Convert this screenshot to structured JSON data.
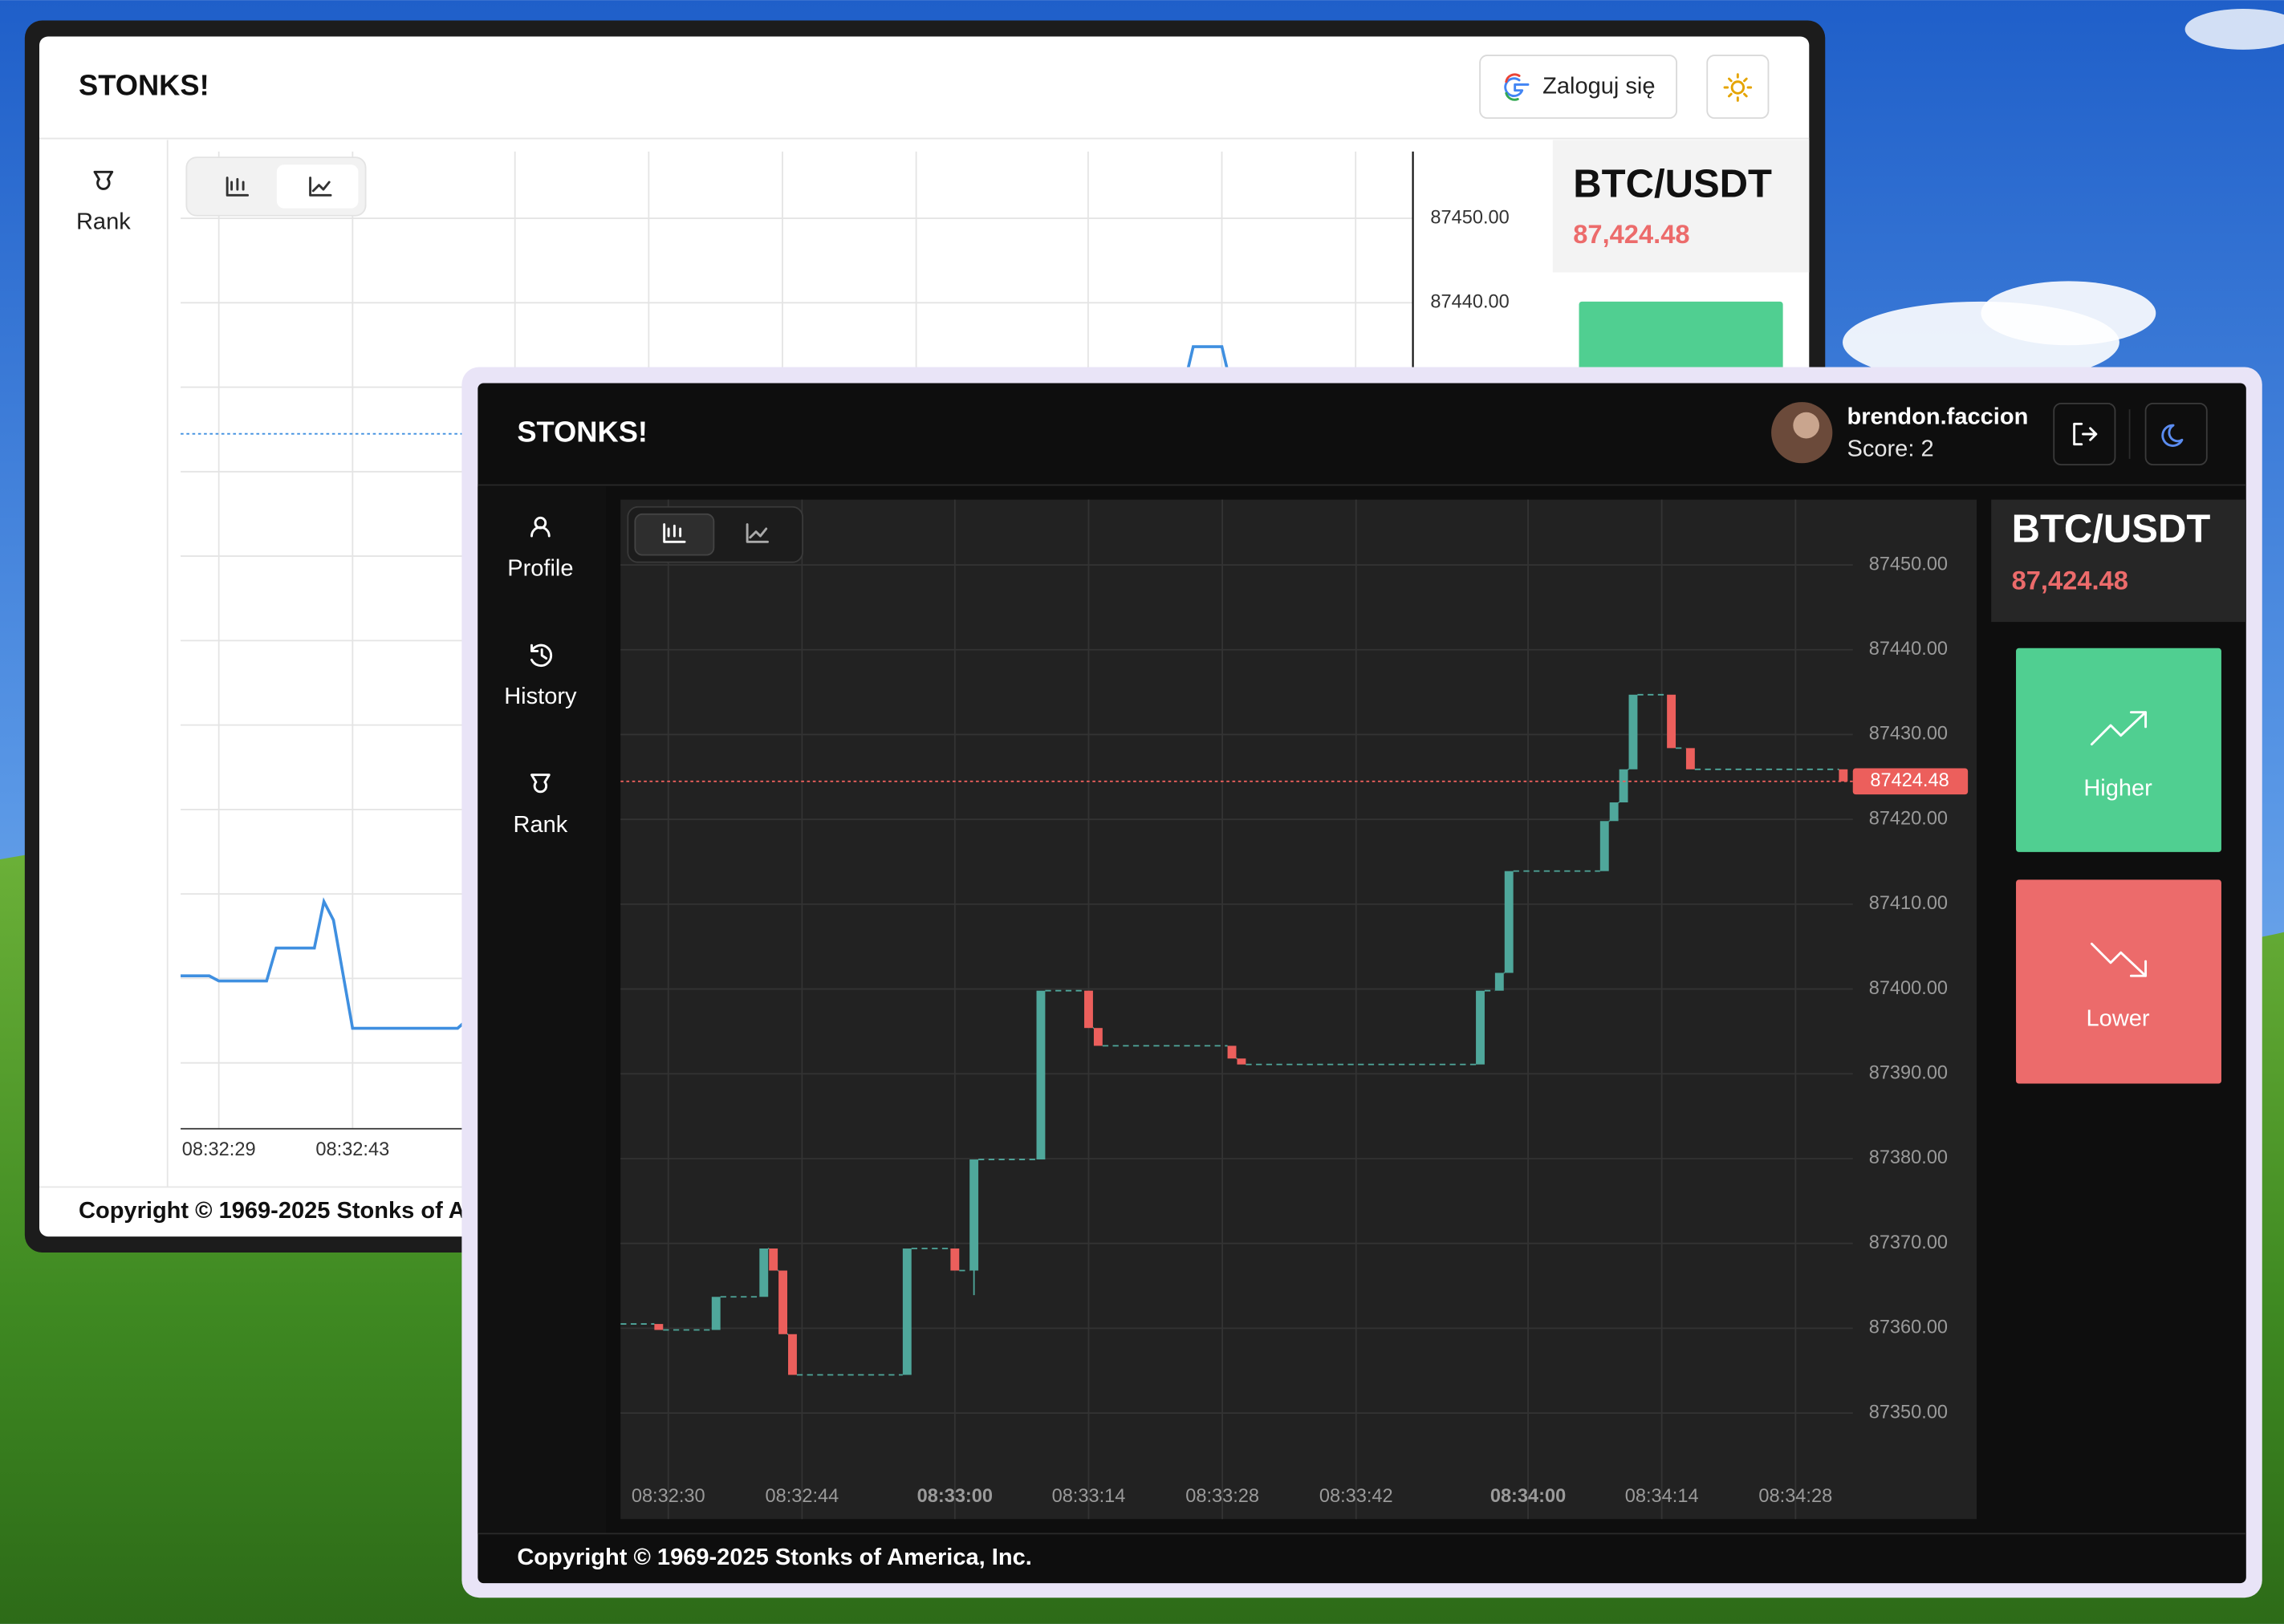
{
  "back_window": {
    "title": "STONKS!",
    "login_button": "Zaloguj się",
    "sidebar": [
      "Rank"
    ],
    "pair": "BTC/USDT",
    "price": "87,424.48",
    "footer": "Copyright © 1969-2025 Stonks of America, Inc.",
    "chart_data": {
      "type": "line",
      "x": [
        "08:32:25",
        "08:32:28",
        "08:32:29",
        "08:32:34",
        "08:32:35",
        "08:32:39",
        "08:32:40",
        "08:32:41",
        "08:32:43",
        "08:32:54",
        "08:34:10",
        "08:34:11",
        "08:34:14",
        "08:34:15"
      ],
      "values": [
        87360.3,
        87360.3,
        87359.7,
        87359.7,
        87363.6,
        87363.6,
        87369.1,
        87366.9,
        87354.1,
        87354.1,
        87430,
        87434.8,
        87434.8,
        87430
      ],
      "color": "#3f8fe0",
      "xlim": [
        "08:32:25",
        "08:34:34"
      ],
      "ylim": [
        87342.2,
        87457.9
      ],
      "xticks": [
        "08:32:29",
        "08:32:43",
        "08:33:00",
        "08:33:14",
        "08:33:28",
        "08:33:42",
        "08:34:00",
        "08:34:14",
        "08:34:28"
      ],
      "yticks": [
        {
          "value": 87450,
          "label": "87450.00"
        },
        {
          "value": 87440,
          "label": "87440.00"
        },
        {
          "value": 87430,
          "label": "87430.00"
        },
        {
          "value": 87420,
          "label": "87420.00"
        },
        {
          "value": 87410,
          "label": "87410.00"
        },
        {
          "value": 87400,
          "label": "87400.00"
        },
        {
          "value": 87390,
          "label": "87390.00"
        },
        {
          "value": 87380,
          "label": "87380.00"
        },
        {
          "value": 87370,
          "label": "87370.00"
        },
        {
          "value": 87360,
          "label": "87360.00"
        },
        {
          "value": 87350,
          "label": "87350.00"
        }
      ],
      "last_price": 87424.48,
      "grid": true
    }
  },
  "front_window": {
    "title": "STONKS!",
    "user": {
      "name": "brendon.faccion",
      "score": "Score: 2"
    },
    "sidebar": [
      "Profile",
      "History",
      "Rank"
    ],
    "pair": "BTC/USDT",
    "price": "87,424.48",
    "buttons": [
      "Higher",
      "Lower"
    ],
    "footer": "Copyright © 1969-2025 Stonks of America, Inc.",
    "chart_data": {
      "type": "candlestick",
      "candles": [
        {
          "time": "08:32:29",
          "open": 87360.5,
          "close": 87359.8
        },
        {
          "time": "08:32:35",
          "open": 87359.8,
          "close": 87363.7
        },
        {
          "time": "08:32:40",
          "open": 87363.7,
          "close": 87369.4
        },
        {
          "time": "08:32:41",
          "open": 87369.4,
          "close": 87366.8
        },
        {
          "time": "08:32:42",
          "open": 87366.8,
          "close": 87359.3
        },
        {
          "time": "08:32:43",
          "open": 87359.3,
          "close": 87354.5
        },
        {
          "time": "08:32:55",
          "open": 87354.5,
          "close": 87369.4
        },
        {
          "time": "08:33:00",
          "open": 87369.4,
          "close": 87366.8
        },
        {
          "time": "08:33:02",
          "open": 87366.8,
          "close": 87379.9,
          "low": 87363.9
        },
        {
          "time": "08:33:09",
          "open": 87379.9,
          "close": 87399.8
        },
        {
          "time": "08:33:14",
          "open": 87399.8,
          "close": 87395.4
        },
        {
          "time": "08:33:15",
          "open": 87395.4,
          "close": 87393.3
        },
        {
          "time": "08:33:29",
          "open": 87393.3,
          "close": 87391.8
        },
        {
          "time": "08:33:30",
          "open": 87391.8,
          "close": 87391.1
        },
        {
          "time": "08:33:55",
          "open": 87391.1,
          "close": 87399.8
        },
        {
          "time": "08:33:57",
          "open": 87399.8,
          "close": 87401.9
        },
        {
          "time": "08:33:58",
          "open": 87401.9,
          "close": 87413.9
        },
        {
          "time": "08:34:08",
          "open": 87413.9,
          "close": 87419.8
        },
        {
          "time": "08:34:09",
          "open": 87419.8,
          "close": 87422.0
        },
        {
          "time": "08:34:10",
          "open": 87422.0,
          "close": 87425.9
        },
        {
          "time": "08:34:11",
          "open": 87425.9,
          "close": 87434.7
        },
        {
          "time": "08:34:15",
          "open": 87434.7,
          "close": 87428.4
        },
        {
          "time": "08:34:17",
          "open": 87428.4,
          "close": 87425.9
        },
        {
          "time": "08:34:33",
          "open": 87425.9,
          "close": 87424.48
        }
      ],
      "up_color": "#4fa79b",
      "down_color": "#ec5f5c",
      "xlim": [
        "08:32:25",
        "08:34:34"
      ],
      "ylim": [
        87337.5,
        87457.7
      ],
      "xticks": [
        "08:32:30",
        "08:32:44",
        "08:33:00",
        "08:33:14",
        "08:33:28",
        "08:33:42",
        "08:34:00",
        "08:34:14",
        "08:34:28"
      ],
      "yticks": [
        {
          "value": 87450,
          "label": "87450.00"
        },
        {
          "value": 87440,
          "label": "87440.00"
        },
        {
          "value": 87430,
          "label": "87430.00"
        },
        {
          "value": 87420,
          "label": "87420.00"
        },
        {
          "value": 87410,
          "label": "87410.00"
        },
        {
          "value": 87400,
          "label": "87400.00"
        },
        {
          "value": 87390,
          "label": "87390.00"
        },
        {
          "value": 87380,
          "label": "87380.00"
        },
        {
          "value": 87370,
          "label": "87370.00"
        },
        {
          "value": 87360,
          "label": "87360.00"
        },
        {
          "value": 87350,
          "label": "87350.00"
        }
      ],
      "last_price": 87424.48,
      "grid": true
    }
  }
}
